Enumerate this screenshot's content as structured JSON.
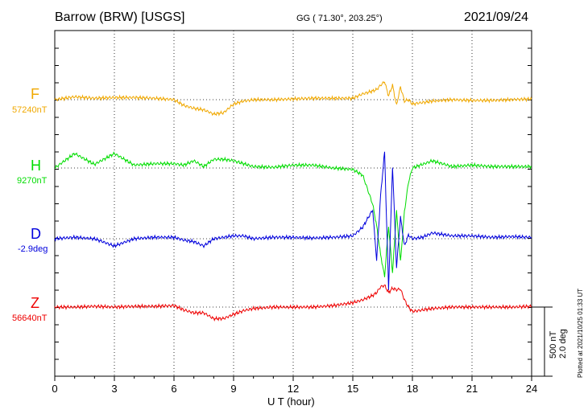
{
  "header": {
    "station": "Barrow (BRW)  [USGS]",
    "coords": "GG ( 71.30°, 203.25°)",
    "date": "2021/09/24"
  },
  "channels": [
    {
      "name": "F",
      "baseline": "57240nT",
      "color": "#f0a800"
    },
    {
      "name": "H",
      "baseline": "9270nT",
      "color": "#00dd00"
    },
    {
      "name": "D",
      "baseline": "-2.9deg",
      "color": "#0000dd"
    },
    {
      "name": "Z",
      "baseline": "56640nT",
      "color": "#ee0000"
    }
  ],
  "axis": {
    "xlabel": "U T (hour)",
    "ticks": [
      "0",
      "3",
      "6",
      "9",
      "12",
      "15",
      "18",
      "21",
      "24"
    ]
  },
  "scale_text": "500 nT\n2.0 deg",
  "plotted_text": "Plotted at 2021/10/25 01:33 UT",
  "chart_data": {
    "type": "line",
    "x": [
      0,
      1,
      2,
      3,
      4,
      5,
      6,
      6.5,
      7,
      7.5,
      8,
      8.5,
      9,
      9.5,
      10,
      11,
      12,
      13,
      14,
      15,
      15.5,
      16,
      16.2,
      16.4,
      16.6,
      16.8,
      17,
      17.2,
      17.4,
      17.6,
      17.8,
      18,
      18.5,
      19,
      20,
      21,
      22,
      23,
      24
    ],
    "xlim": [
      0,
      24
    ],
    "series": [
      {
        "name": "F",
        "values": [
          0,
          4,
          2,
          3,
          3,
          2,
          0,
          -8,
          -12,
          -14,
          -20,
          -18,
          -6,
          -2,
          0,
          0,
          1,
          2,
          2,
          2,
          8,
          12,
          14,
          20,
          25,
          5,
          20,
          -8,
          18,
          -2,
          0,
          -6,
          -4,
          -2,
          0,
          -1,
          -1,
          0,
          1
        ]
      },
      {
        "name": "H",
        "values": [
          0,
          20,
          5,
          20,
          4,
          6,
          6,
          4,
          10,
          2,
          12,
          12,
          10,
          6,
          2,
          1,
          4,
          4,
          0,
          -2,
          -10,
          -50,
          -80,
          -120,
          -150,
          -80,
          -145,
          -60,
          -130,
          -60,
          -20,
          0,
          5,
          10,
          2,
          4,
          2,
          2,
          2
        ]
      },
      {
        "name": "D",
        "values": [
          0,
          2,
          0,
          -10,
          0,
          2,
          2,
          -2,
          -4,
          -10,
          0,
          2,
          4,
          4,
          0,
          2,
          2,
          1,
          2,
          4,
          16,
          40,
          -30,
          60,
          120,
          -70,
          100,
          -40,
          30,
          -10,
          5,
          0,
          2,
          8,
          4,
          4,
          2,
          3,
          2
        ]
      },
      {
        "name": "Z",
        "values": [
          0,
          0,
          1,
          0,
          1,
          1,
          2,
          -4,
          -8,
          -8,
          -16,
          -16,
          -10,
          -5,
          -2,
          0,
          0,
          0,
          2,
          6,
          10,
          16,
          20,
          28,
          30,
          20,
          26,
          24,
          25,
          10,
          0,
          -6,
          -4,
          -2,
          0,
          0,
          0,
          0,
          1
        ]
      }
    ],
    "grid": true
  }
}
